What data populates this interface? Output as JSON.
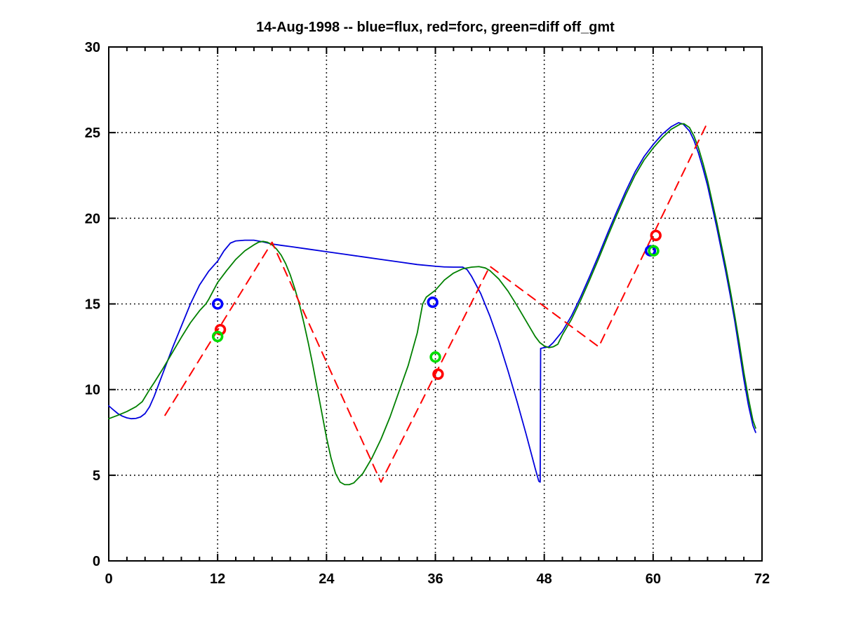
{
  "chart_data": {
    "type": "line",
    "title": "14-Aug-1998 -- blue=flux, red=forc, green=diff off_gmt",
    "xlabel": "",
    "ylabel": "",
    "xlim": [
      0,
      72
    ],
    "ylim": [
      0,
      30
    ],
    "xticks": [
      0,
      12,
      24,
      36,
      48,
      60,
      72
    ],
    "yticks": [
      0,
      5,
      10,
      15,
      20,
      25,
      30
    ],
    "x_minor_step": 2,
    "grid": "dotted black at major ticks",
    "legend_position": "in-title",
    "colors": {
      "flux_line": "#0000dd",
      "diff_line": "#008000",
      "forc_line": "#ff0000",
      "flux_marker": "#0000ff",
      "forc_marker": "#ff0000",
      "diff_marker": "#00dd00",
      "axis": "#000000"
    },
    "series": [
      {
        "name": "flux",
        "style": "solid",
        "color_key": "flux_line",
        "points": [
          [
            0,
            9.05
          ],
          [
            0.5,
            8.82
          ],
          [
            1,
            8.6
          ],
          [
            1.5,
            8.45
          ],
          [
            2,
            8.35
          ],
          [
            2.5,
            8.3
          ],
          [
            3,
            8.32
          ],
          [
            3.5,
            8.4
          ],
          [
            4,
            8.6
          ],
          [
            4.5,
            9.0
          ],
          [
            5,
            9.6
          ],
          [
            6,
            11.0
          ],
          [
            7,
            12.4
          ],
          [
            8,
            13.7
          ],
          [
            9,
            15.0
          ],
          [
            10,
            16.1
          ],
          [
            11,
            16.9
          ],
          [
            12,
            17.5
          ],
          [
            12.7,
            18.1
          ],
          [
            13.4,
            18.55
          ],
          [
            14,
            18.68
          ],
          [
            15,
            18.72
          ],
          [
            16,
            18.72
          ],
          [
            17,
            18.62
          ],
          [
            18,
            18.5
          ],
          [
            19,
            18.42
          ],
          [
            20,
            18.35
          ],
          [
            22,
            18.2
          ],
          [
            24,
            18.05
          ],
          [
            26,
            17.9
          ],
          [
            28,
            17.75
          ],
          [
            30,
            17.6
          ],
          [
            32,
            17.45
          ],
          [
            34,
            17.3
          ],
          [
            36,
            17.2
          ],
          [
            37,
            17.16
          ],
          [
            38,
            17.15
          ],
          [
            39,
            17.15
          ],
          [
            39.5,
            17.0
          ],
          [
            40,
            16.6
          ],
          [
            41,
            15.6
          ],
          [
            42,
            14.3
          ],
          [
            43,
            12.8
          ],
          [
            44,
            11.1
          ],
          [
            45,
            9.3
          ],
          [
            46,
            7.4
          ],
          [
            47,
            5.4
          ],
          [
            47.4,
            4.65
          ],
          [
            47.55,
            4.6
          ],
          [
            47.6,
            12.4
          ],
          [
            48,
            12.45
          ],
          [
            48.5,
            12.5
          ],
          [
            49,
            12.75
          ],
          [
            50,
            13.4
          ],
          [
            51,
            14.3
          ],
          [
            52,
            15.4
          ],
          [
            53,
            16.6
          ],
          [
            54,
            17.85
          ],
          [
            55,
            19.15
          ],
          [
            56,
            20.4
          ],
          [
            57,
            21.6
          ],
          [
            58,
            22.7
          ],
          [
            59,
            23.6
          ],
          [
            60,
            24.3
          ],
          [
            61,
            24.9
          ],
          [
            62,
            25.35
          ],
          [
            62.8,
            25.58
          ],
          [
            63.3,
            25.5
          ],
          [
            64,
            25.1
          ],
          [
            64.5,
            24.55
          ],
          [
            65,
            23.8
          ],
          [
            65.5,
            22.9
          ],
          [
            66,
            21.9
          ],
          [
            66.5,
            20.7
          ],
          [
            67,
            19.5
          ],
          [
            67.5,
            18.2
          ],
          [
            68,
            16.9
          ],
          [
            68.5,
            15.5
          ],
          [
            69,
            14.0
          ],
          [
            69.5,
            12.3
          ],
          [
            70,
            10.6
          ],
          [
            70.5,
            9.1
          ],
          [
            71,
            7.9
          ],
          [
            71.3,
            7.5
          ]
        ]
      },
      {
        "name": "diff",
        "style": "solid",
        "color_key": "diff_line",
        "points": [
          [
            0,
            8.3
          ],
          [
            1,
            8.5
          ],
          [
            2,
            8.72
          ],
          [
            3,
            9.0
          ],
          [
            3.7,
            9.3
          ],
          [
            4.5,
            10.0
          ],
          [
            5,
            10.4
          ],
          [
            6,
            11.25
          ],
          [
            7,
            12.15
          ],
          [
            8,
            13.05
          ],
          [
            9,
            13.9
          ],
          [
            10,
            14.6
          ],
          [
            10.7,
            15.0
          ],
          [
            11,
            15.25
          ],
          [
            12,
            16.25
          ],
          [
            13,
            16.95
          ],
          [
            14,
            17.6
          ],
          [
            15,
            18.1
          ],
          [
            16,
            18.45
          ],
          [
            16.5,
            18.6
          ],
          [
            17,
            18.65
          ],
          [
            17.5,
            18.6
          ],
          [
            18,
            18.45
          ],
          [
            18.5,
            18.2
          ],
          [
            19,
            17.85
          ],
          [
            19.5,
            17.35
          ],
          [
            20,
            16.7
          ],
          [
            20.5,
            15.9
          ],
          [
            21,
            15.0
          ],
          [
            21.5,
            13.9
          ],
          [
            22,
            12.7
          ],
          [
            22.5,
            11.4
          ],
          [
            23,
            10.0
          ],
          [
            23.5,
            8.6
          ],
          [
            24,
            7.2
          ],
          [
            24.5,
            6.0
          ],
          [
            25,
            5.1
          ],
          [
            25.5,
            4.6
          ],
          [
            26,
            4.45
          ],
          [
            26.5,
            4.45
          ],
          [
            27,
            4.55
          ],
          [
            28,
            5.1
          ],
          [
            29,
            6.0
          ],
          [
            30,
            7.1
          ],
          [
            31,
            8.4
          ],
          [
            32,
            9.9
          ],
          [
            33,
            11.4
          ],
          [
            34,
            13.3
          ],
          [
            34.6,
            15.0
          ],
          [
            35,
            15.4
          ],
          [
            36,
            15.8
          ],
          [
            37,
            16.4
          ],
          [
            38,
            16.8
          ],
          [
            39,
            17.05
          ],
          [
            40,
            17.15
          ],
          [
            40.8,
            17.18
          ],
          [
            41.5,
            17.1
          ],
          [
            42,
            16.95
          ],
          [
            43,
            16.45
          ],
          [
            44,
            15.75
          ],
          [
            45,
            14.9
          ],
          [
            46,
            14.0
          ],
          [
            47,
            13.1
          ],
          [
            47.5,
            12.75
          ],
          [
            48,
            12.55
          ],
          [
            48.5,
            12.45
          ],
          [
            49,
            12.5
          ],
          [
            49.5,
            12.65
          ],
          [
            50,
            13.2
          ],
          [
            51,
            14.1
          ],
          [
            52,
            15.2
          ],
          [
            53,
            16.4
          ],
          [
            54,
            17.65
          ],
          [
            55,
            18.95
          ],
          [
            56,
            20.2
          ],
          [
            57,
            21.4
          ],
          [
            58,
            22.5
          ],
          [
            59,
            23.4
          ],
          [
            60,
            24.1
          ],
          [
            61,
            24.7
          ],
          [
            62,
            25.2
          ],
          [
            63,
            25.5
          ],
          [
            63.4,
            25.52
          ],
          [
            64,
            25.3
          ],
          [
            64.5,
            24.8
          ],
          [
            65,
            24.1
          ],
          [
            65.5,
            23.2
          ],
          [
            66,
            22.2
          ],
          [
            66.5,
            21.0
          ],
          [
            67,
            19.8
          ],
          [
            67.5,
            18.5
          ],
          [
            68,
            17.2
          ],
          [
            68.5,
            15.8
          ],
          [
            69,
            14.3
          ],
          [
            69.5,
            12.7
          ],
          [
            70,
            11.0
          ],
          [
            70.5,
            9.5
          ],
          [
            71,
            8.2
          ],
          [
            71.3,
            7.75
          ]
        ]
      },
      {
        "name": "forc",
        "style": "dashed",
        "color_key": "forc_line",
        "points": [
          [
            6.2,
            8.5
          ],
          [
            18,
            18.6
          ],
          [
            30,
            4.6
          ],
          [
            42,
            17.2
          ],
          [
            54,
            12.5
          ],
          [
            66,
            25.6
          ]
        ]
      }
    ],
    "markers": [
      {
        "name": "flux-obs",
        "shape": "open-circle",
        "color_key": "flux_marker",
        "points": [
          [
            12,
            15.0
          ],
          [
            35.7,
            15.1
          ],
          [
            59.7,
            18.1
          ]
        ]
      },
      {
        "name": "forc-obs",
        "shape": "open-circle",
        "color_key": "forc_marker",
        "points": [
          [
            12.3,
            13.5
          ],
          [
            36.3,
            10.9
          ],
          [
            60.3,
            19.0
          ]
        ]
      },
      {
        "name": "diff-obs",
        "shape": "open-circle",
        "color_key": "diff_marker",
        "points": [
          [
            12,
            13.1
          ],
          [
            36,
            11.9
          ],
          [
            60.05,
            18.1
          ]
        ]
      }
    ]
  }
}
